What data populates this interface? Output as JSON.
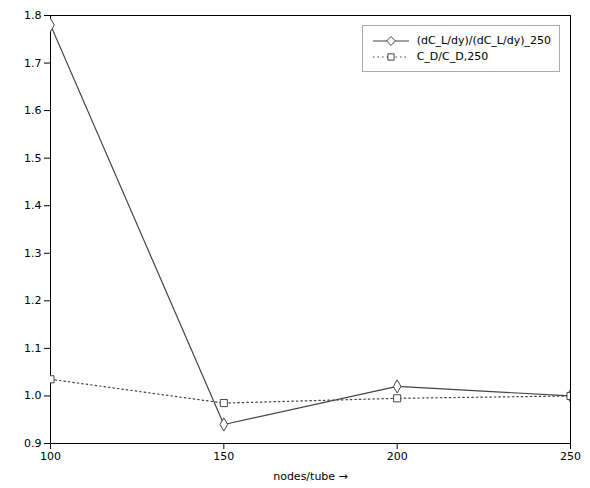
{
  "chart_data": {
    "type": "line",
    "x": [
      100,
      150,
      200,
      250
    ],
    "xlabel": "nodes/tube",
    "xlim": [
      100,
      250
    ],
    "xticks": [
      100,
      150,
      200,
      250
    ],
    "ylim": [
      0.9,
      1.8
    ],
    "yticks": [
      0.9,
      {
        "value": 1.0,
        "label": "1.0"
      },
      1.1,
      1.2,
      1.3,
      1.4,
      1.5,
      1.6,
      1.7,
      1.8
    ],
    "grid": false,
    "legend": "upper right",
    "series": [
      {
        "name": "(dC_L/dy)/(dC_L/dy)_250",
        "color": "#444444",
        "marker": "diamond",
        "line_style": "solid",
        "values": [
          1.78,
          0.94,
          1.02,
          1.0
        ]
      },
      {
        "name": "C_D/C_D,250",
        "color": "#444444",
        "marker": "square",
        "line_style": "dotted",
        "values": [
          1.035,
          0.985,
          0.995,
          1.0
        ]
      }
    ]
  }
}
